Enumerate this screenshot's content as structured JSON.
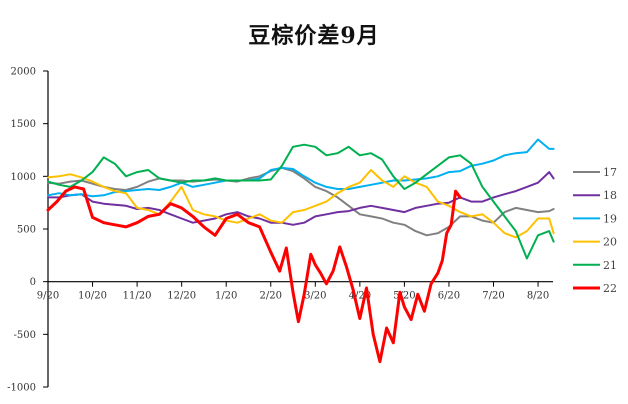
{
  "chart_data": {
    "type": "line",
    "title": "豆棕价差9月",
    "xlabel": "",
    "ylabel": "",
    "ylim": [
      -1000,
      2000
    ],
    "yticks": [
      2000,
      1500,
      1000,
      500,
      0,
      -500,
      -1000
    ],
    "x_tick_labels": [
      "9/20",
      "10/20",
      "11/20",
      "12/20",
      "1/20",
      "2/20",
      "3/20",
      "4/20",
      "5/20",
      "6/20",
      "7/20",
      "8/20"
    ],
    "grid": false,
    "legend_position": "right",
    "x_range_months": [
      0,
      11.35
    ],
    "series": [
      {
        "name": "17",
        "color": "#808080",
        "width": 2,
        "x": [
          0,
          0.25,
          0.5,
          0.75,
          1,
          1.25,
          1.5,
          1.75,
          2,
          2.25,
          2.5,
          2.75,
          3,
          3.25,
          3.5,
          3.75,
          4,
          4.25,
          4.5,
          4.75,
          5,
          5.25,
          5.5,
          5.75,
          6,
          6.25,
          6.5,
          6.75,
          7,
          7.25,
          7.5,
          7.75,
          8,
          8.25,
          8.5,
          8.75,
          9,
          9.25,
          9.5,
          9.75,
          10,
          10.25,
          10.5,
          10.75,
          11,
          11.25,
          11.35
        ],
        "values": [
          940,
          930,
          950,
          960,
          930,
          900,
          880,
          870,
          900,
          950,
          980,
          960,
          960,
          950,
          960,
          970,
          960,
          950,
          980,
          1000,
          1050,
          1080,
          1050,
          980,
          900,
          860,
          800,
          720,
          640,
          620,
          600,
          560,
          540,
          480,
          440,
          460,
          520,
          620,
          620,
          580,
          560,
          660,
          700,
          680,
          660,
          670,
          690
        ]
      },
      {
        "name": "18",
        "color": "#7030A0",
        "width": 2,
        "x": [
          0,
          0.25,
          0.5,
          0.75,
          1,
          1.25,
          1.5,
          1.75,
          2,
          2.25,
          2.5,
          2.75,
          3,
          3.25,
          3.5,
          3.75,
          4,
          4.25,
          4.5,
          4.75,
          5,
          5.25,
          5.5,
          5.75,
          6,
          6.25,
          6.5,
          6.75,
          7,
          7.25,
          7.5,
          7.75,
          8,
          8.25,
          8.5,
          8.75,
          9,
          9.25,
          9.5,
          9.75,
          10,
          10.25,
          10.5,
          10.75,
          11,
          11.25,
          11.35
        ],
        "values": [
          800,
          800,
          820,
          830,
          760,
          740,
          730,
          720,
          690,
          700,
          680,
          640,
          600,
          560,
          580,
          600,
          640,
          660,
          620,
          600,
          560,
          560,
          540,
          560,
          620,
          640,
          660,
          670,
          700,
          720,
          700,
          680,
          660,
          700,
          720,
          740,
          750,
          800,
          760,
          760,
          800,
          830,
          860,
          900,
          940,
          1040,
          980
        ]
      },
      {
        "name": "19",
        "color": "#00B0F0",
        "width": 2,
        "x": [
          0,
          0.25,
          0.5,
          0.75,
          1,
          1.25,
          1.5,
          1.75,
          2,
          2.25,
          2.5,
          2.75,
          3,
          3.25,
          3.5,
          3.75,
          4,
          4.25,
          4.5,
          4.75,
          5,
          5.25,
          5.5,
          5.75,
          6,
          6.25,
          6.5,
          6.75,
          7,
          7.25,
          7.5,
          7.75,
          8,
          8.25,
          8.5,
          8.75,
          9,
          9.25,
          9.5,
          9.75,
          10,
          10.25,
          10.5,
          10.75,
          11,
          11.25,
          11.35
        ],
        "values": [
          820,
          840,
          820,
          830,
          810,
          820,
          850,
          860,
          870,
          880,
          870,
          900,
          940,
          900,
          920,
          940,
          960,
          960,
          960,
          980,
          1060,
          1080,
          1070,
          1000,
          940,
          900,
          880,
          880,
          900,
          920,
          940,
          960,
          960,
          970,
          980,
          1000,
          1040,
          1050,
          1100,
          1120,
          1150,
          1200,
          1220,
          1230,
          1350,
          1260,
          1260
        ]
      },
      {
        "name": "20",
        "color": "#FFC000",
        "width": 2,
        "x": [
          0,
          0.25,
          0.5,
          0.75,
          1,
          1.25,
          1.5,
          1.75,
          2,
          2.25,
          2.5,
          2.75,
          3,
          3.25,
          3.5,
          3.75,
          4,
          4.25,
          4.5,
          4.75,
          5,
          5.25,
          5.5,
          5.75,
          6,
          6.25,
          6.5,
          6.75,
          7,
          7.25,
          7.5,
          7.75,
          8,
          8.25,
          8.5,
          8.75,
          9,
          9.25,
          9.5,
          9.75,
          10,
          10.25,
          10.5,
          10.75,
          11,
          11.25,
          11.35
        ],
        "values": [
          990,
          1000,
          1020,
          990,
          950,
          900,
          860,
          840,
          700,
          680,
          640,
          760,
          900,
          680,
          640,
          620,
          580,
          560,
          600,
          640,
          580,
          560,
          660,
          680,
          720,
          760,
          840,
          900,
          940,
          1060,
          960,
          900,
          1000,
          940,
          900,
          760,
          720,
          660,
          620,
          640,
          560,
          460,
          420,
          480,
          600,
          600,
          460
        ]
      },
      {
        "name": "21",
        "color": "#00B050",
        "width": 2,
        "x": [
          0,
          0.25,
          0.5,
          0.75,
          1,
          1.25,
          1.5,
          1.75,
          2,
          2.25,
          2.5,
          2.75,
          3,
          3.25,
          3.5,
          3.75,
          4,
          4.25,
          4.5,
          4.75,
          5,
          5.25,
          5.5,
          5.75,
          6,
          6.25,
          6.5,
          6.75,
          7,
          7.25,
          7.5,
          7.75,
          8,
          8.25,
          8.5,
          8.75,
          9,
          9.25,
          9.5,
          9.75,
          10,
          10.25,
          10.5,
          10.75,
          11,
          11.25,
          11.35
        ],
        "values": [
          950,
          920,
          900,
          960,
          1040,
          1180,
          1120,
          1000,
          1040,
          1060,
          980,
          960,
          940,
          960,
          960,
          980,
          960,
          960,
          960,
          960,
          970,
          1100,
          1280,
          1300,
          1280,
          1200,
          1220,
          1280,
          1200,
          1220,
          1160,
          1000,
          880,
          940,
          1020,
          1100,
          1180,
          1200,
          1120,
          900,
          760,
          620,
          480,
          220,
          440,
          480,
          380
        ]
      },
      {
        "name": "22",
        "color": "#FF0000",
        "width": 3,
        "x": [
          0,
          0.2,
          0.4,
          0.6,
          0.8,
          1,
          1.25,
          1.5,
          1.75,
          2,
          2.25,
          2.5,
          2.75,
          3,
          3.25,
          3.5,
          3.75,
          4,
          4.25,
          4.5,
          4.75,
          5,
          5.2,
          5.35,
          5.5,
          5.62,
          5.75,
          5.9,
          6,
          6.12,
          6.25,
          6.4,
          6.55,
          6.7,
          6.85,
          7,
          7.15,
          7.3,
          7.45,
          7.6,
          7.75,
          7.9,
          8,
          8.15,
          8.3,
          8.45,
          8.6,
          8.75,
          8.85,
          8.95,
          9.05,
          9.15,
          9.25
        ],
        "values": [
          680,
          760,
          860,
          900,
          880,
          610,
          560,
          540,
          520,
          560,
          620,
          640,
          740,
          700,
          620,
          520,
          440,
          600,
          640,
          560,
          520,
          280,
          100,
          320,
          -100,
          -380,
          -120,
          260,
          160,
          80,
          -20,
          100,
          330,
          140,
          -80,
          -350,
          -60,
          -500,
          -760,
          -440,
          -580,
          -100,
          -240,
          -360,
          -120,
          -280,
          -20,
          80,
          200,
          460,
          540,
          860,
          800
        ]
      }
    ]
  },
  "legend": {
    "items": [
      {
        "label": "17",
        "color": "#808080"
      },
      {
        "label": "18",
        "color": "#7030A0"
      },
      {
        "label": "19",
        "color": "#00B0F0"
      },
      {
        "label": "20",
        "color": "#FFC000"
      },
      {
        "label": "21",
        "color": "#00B050"
      },
      {
        "label": "22",
        "color": "#FF0000"
      }
    ]
  }
}
